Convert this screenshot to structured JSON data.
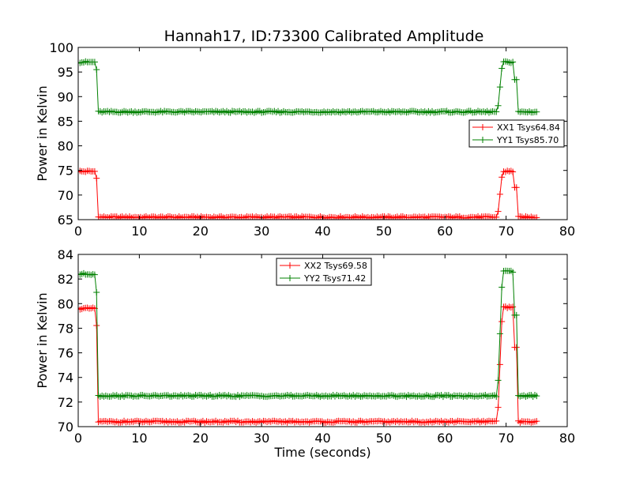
{
  "figure": {
    "title": "Hannah17, ID:73300 Calibrated Amplitude"
  },
  "colors": {
    "xx": "#ff0000",
    "yy": "#008000",
    "axes": "#000000",
    "background": "#ffffff"
  },
  "chart_data": [
    {
      "type": "line",
      "marker": "+",
      "title": "Hannah17, ID:73300 Calibrated Amplitude",
      "xlabel": "",
      "ylabel": "Power in Kelvin",
      "xlim": [
        0,
        80
      ],
      "ylim": [
        65,
        100
      ],
      "xticks": [
        0,
        10,
        20,
        30,
        40,
        50,
        60,
        70,
        80
      ],
      "yticks": [
        65,
        70,
        75,
        80,
        85,
        90,
        95,
        100
      ],
      "grid": false,
      "legend_position": "center-right",
      "series": [
        {
          "name": "XX1 Tsys64.84",
          "color": "#ff0000",
          "levels": {
            "on_start": 74.8,
            "off": 65.5,
            "on_end": 74.8
          },
          "transitions": {
            "drop_start": 2.8,
            "drop_end": 3.3,
            "rise_start": 68.6,
            "rise_end": 69.4,
            "fall_start": 71.2,
            "fall_end": 72.0,
            "x_end": 75.0
          }
        },
        {
          "name": "YY1 Tsys85.70",
          "color": "#008000",
          "levels": {
            "on_start": 97.0,
            "off": 86.9,
            "on_end": 97.0
          },
          "transitions": {
            "drop_start": 2.8,
            "drop_end": 3.3,
            "rise_start": 68.6,
            "rise_end": 69.4,
            "fall_start": 71.2,
            "fall_end": 72.0,
            "x_end": 75.0
          }
        }
      ]
    },
    {
      "type": "line",
      "marker": "+",
      "title": "",
      "xlabel": "Time (seconds)",
      "ylabel": "Power in Kelvin",
      "xlim": [
        0,
        80
      ],
      "ylim": [
        70,
        84
      ],
      "xticks": [
        0,
        10,
        20,
        30,
        40,
        50,
        60,
        70,
        80
      ],
      "yticks": [
        70,
        72,
        74,
        76,
        78,
        80,
        82,
        84
      ],
      "grid": false,
      "legend_position": "top-center",
      "series": [
        {
          "name": "XX2 Tsys69.58",
          "color": "#ff0000",
          "levels": {
            "on_start": 79.6,
            "off": 70.4,
            "on_end": 79.7
          },
          "transitions": {
            "drop_start": 2.8,
            "drop_end": 3.3,
            "rise_start": 68.6,
            "rise_end": 69.4,
            "fall_start": 71.2,
            "fall_end": 72.0,
            "x_end": 75.0
          }
        },
        {
          "name": "YY2 Tsys71.42",
          "color": "#008000",
          "levels": {
            "on_start": 82.4,
            "off": 72.5,
            "on_end": 82.6
          },
          "transitions": {
            "drop_start": 2.8,
            "drop_end": 3.3,
            "rise_start": 68.6,
            "rise_end": 69.4,
            "fall_start": 71.2,
            "fall_end": 72.0,
            "x_end": 75.0
          }
        }
      ]
    }
  ]
}
